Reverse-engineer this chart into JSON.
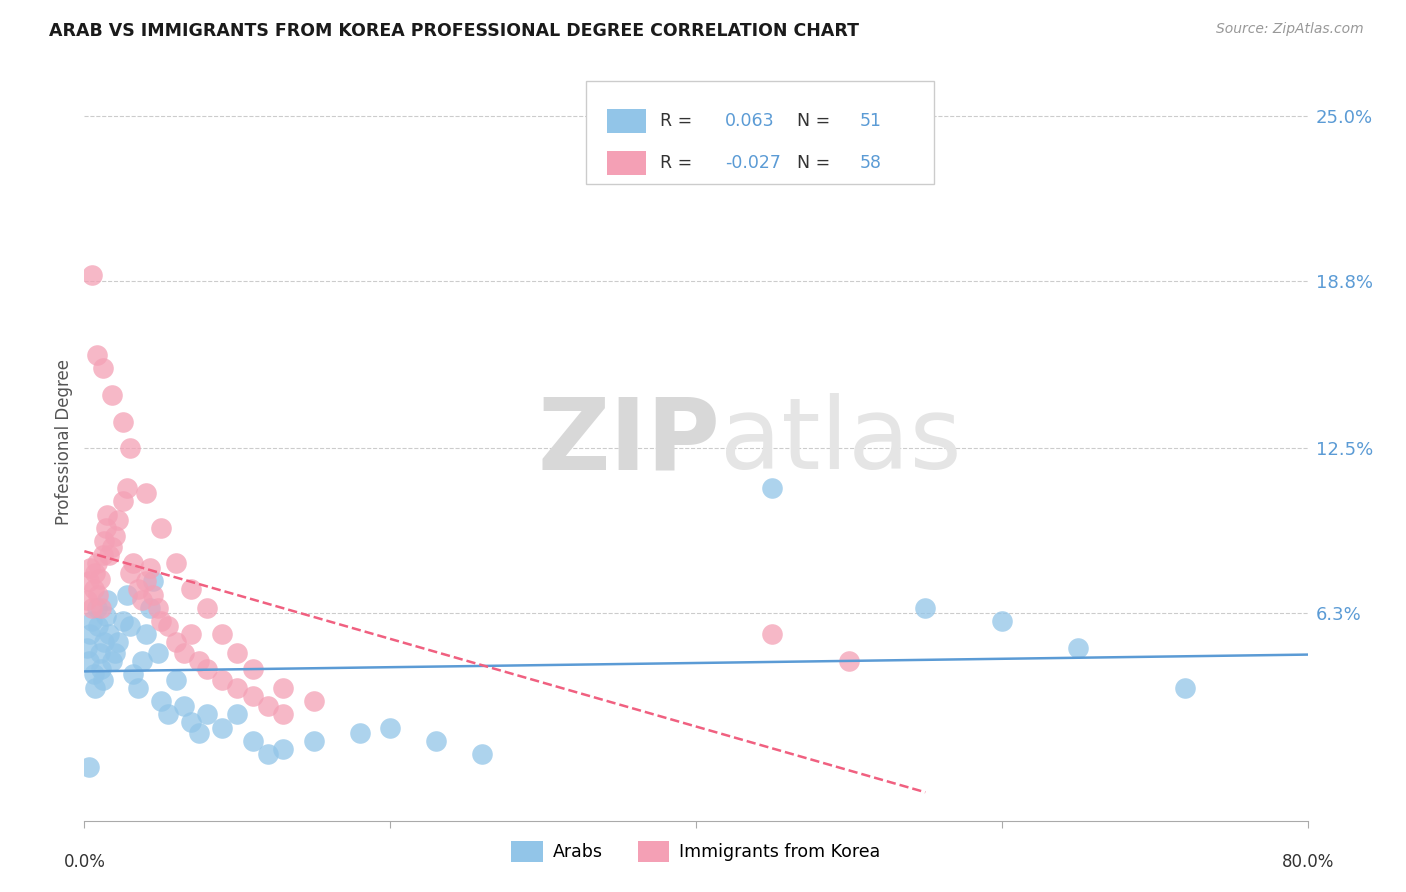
{
  "title": "ARAB VS IMMIGRANTS FROM KOREA PROFESSIONAL DEGREE CORRELATION CHART",
  "source": "Source: ZipAtlas.com",
  "ylabel": "Professional Degree",
  "ytick_labels": [
    "6.3%",
    "12.5%",
    "18.8%",
    "25.0%"
  ],
  "ytick_values": [
    0.063,
    0.125,
    0.188,
    0.25
  ],
  "xlim": [
    0.0,
    0.8
  ],
  "ylim": [
    -0.015,
    0.27
  ],
  "legend_r_arab": "0.063",
  "legend_n_arab": "51",
  "legend_r_korea": "-0.027",
  "legend_n_korea": "58",
  "arab_color": "#92c5e8",
  "korea_color": "#f4a0b5",
  "arab_line_color": "#5b9bd5",
  "korea_line_color": "#f06080",
  "watermark_zip": "ZIP",
  "watermark_atlas": "atlas",
  "arab_x": [
    0.002,
    0.003,
    0.004,
    0.005,
    0.006,
    0.007,
    0.008,
    0.009,
    0.01,
    0.011,
    0.012,
    0.013,
    0.014,
    0.015,
    0.016,
    0.018,
    0.02,
    0.022,
    0.025,
    0.028,
    0.03,
    0.032,
    0.035,
    0.038,
    0.04,
    0.043,
    0.045,
    0.048,
    0.05,
    0.055,
    0.06,
    0.065,
    0.07,
    0.075,
    0.08,
    0.09,
    0.1,
    0.11,
    0.12,
    0.13,
    0.15,
    0.18,
    0.2,
    0.23,
    0.26,
    0.45,
    0.55,
    0.6,
    0.65,
    0.72,
    0.003
  ],
  "arab_y": [
    0.05,
    0.045,
    0.055,
    0.06,
    0.04,
    0.035,
    0.065,
    0.058,
    0.048,
    0.042,
    0.038,
    0.052,
    0.062,
    0.068,
    0.055,
    0.045,
    0.048,
    0.052,
    0.06,
    0.07,
    0.058,
    0.04,
    0.035,
    0.045,
    0.055,
    0.065,
    0.075,
    0.048,
    0.03,
    0.025,
    0.038,
    0.028,
    0.022,
    0.018,
    0.025,
    0.02,
    0.025,
    0.015,
    0.01,
    0.012,
    0.015,
    0.018,
    0.02,
    0.015,
    0.01,
    0.11,
    0.065,
    0.06,
    0.05,
    0.035,
    0.005
  ],
  "korea_x": [
    0.002,
    0.003,
    0.004,
    0.005,
    0.006,
    0.007,
    0.008,
    0.009,
    0.01,
    0.011,
    0.012,
    0.013,
    0.014,
    0.015,
    0.016,
    0.018,
    0.02,
    0.022,
    0.025,
    0.028,
    0.03,
    0.032,
    0.035,
    0.038,
    0.04,
    0.043,
    0.045,
    0.048,
    0.05,
    0.055,
    0.06,
    0.065,
    0.07,
    0.075,
    0.08,
    0.09,
    0.1,
    0.11,
    0.12,
    0.13,
    0.15,
    0.005,
    0.008,
    0.012,
    0.018,
    0.025,
    0.03,
    0.04,
    0.05,
    0.06,
    0.07,
    0.08,
    0.09,
    0.1,
    0.11,
    0.13,
    0.45,
    0.5
  ],
  "korea_y": [
    0.068,
    0.075,
    0.08,
    0.065,
    0.072,
    0.078,
    0.082,
    0.07,
    0.076,
    0.065,
    0.085,
    0.09,
    0.095,
    0.1,
    0.085,
    0.088,
    0.092,
    0.098,
    0.105,
    0.11,
    0.078,
    0.082,
    0.072,
    0.068,
    0.075,
    0.08,
    0.07,
    0.065,
    0.06,
    0.058,
    0.052,
    0.048,
    0.055,
    0.045,
    0.042,
    0.038,
    0.035,
    0.032,
    0.028,
    0.025,
    0.03,
    0.19,
    0.16,
    0.155,
    0.145,
    0.135,
    0.125,
    0.108,
    0.095,
    0.082,
    0.072,
    0.065,
    0.055,
    0.048,
    0.042,
    0.035,
    0.055,
    0.045
  ]
}
